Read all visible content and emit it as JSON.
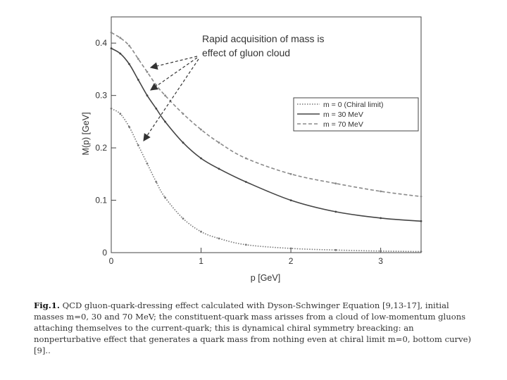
{
  "chart_data": {
    "type": "line",
    "xlabel": "p [GeV]",
    "ylabel": "M(p) [GeV]",
    "xlim": [
      0,
      3.45
    ],
    "ylim": [
      0,
      0.45
    ],
    "x_ticks": [
      "0",
      "1",
      "2",
      "3"
    ],
    "x_tick_values": [
      0,
      1,
      2,
      3
    ],
    "y_ticks": [
      "0",
      "0.1",
      "0.2",
      "0.3",
      "0.4"
    ],
    "y_tick_values": [
      0,
      0.1,
      0.2,
      0.3,
      0.4
    ],
    "legend_position": "right-middle",
    "annotation": [
      "Rapid acquisition of mass is",
      "effect of gluon cloud"
    ],
    "series": [
      {
        "name": "m = 0 (Chiral limit)",
        "style": "dotted",
        "color": "#777777",
        "x": [
          0,
          0.1,
          0.2,
          0.3,
          0.4,
          0.5,
          0.6,
          0.8,
          1.0,
          1.2,
          1.5,
          2.0,
          2.5,
          3.0,
          3.45
        ],
        "y": [
          0.275,
          0.265,
          0.24,
          0.205,
          0.17,
          0.135,
          0.105,
          0.065,
          0.04,
          0.027,
          0.015,
          0.008,
          0.005,
          0.003,
          0.002
        ]
      },
      {
        "name": "m = 30 MeV",
        "style": "solid",
        "color": "#444444",
        "x": [
          0,
          0.1,
          0.2,
          0.3,
          0.4,
          0.5,
          0.6,
          0.8,
          1.0,
          1.2,
          1.5,
          2.0,
          2.5,
          3.0,
          3.45
        ],
        "y": [
          0.39,
          0.38,
          0.36,
          0.33,
          0.3,
          0.275,
          0.25,
          0.21,
          0.18,
          0.16,
          0.135,
          0.1,
          0.078,
          0.066,
          0.06
        ]
      },
      {
        "name": "m = 70 MeV",
        "style": "dashed",
        "color": "#8a8a8a",
        "x": [
          0,
          0.1,
          0.2,
          0.3,
          0.4,
          0.5,
          0.6,
          0.8,
          1.0,
          1.2,
          1.5,
          2.0,
          2.5,
          3.0,
          3.45
        ],
        "y": [
          0.42,
          0.41,
          0.395,
          0.37,
          0.345,
          0.32,
          0.3,
          0.265,
          0.235,
          0.21,
          0.18,
          0.15,
          0.132,
          0.117,
          0.107
        ]
      }
    ]
  },
  "caption": {
    "label": "Fig.1.",
    "text": " QCD gluon-quark-dressing effect calculated with Dyson-Schwinger Equation [9,13-17], initial masses m=0, 30 and 70 MeV; the constituent-quark mass arisses from a cloud of low-momentum gluons attaching themselves to the current-quark; this is dynamical chiral symmetry breacking: an nonperturbative effect that generates a quark mass from nothing even at chiral limit m=0, bottom curve) [9].."
  }
}
